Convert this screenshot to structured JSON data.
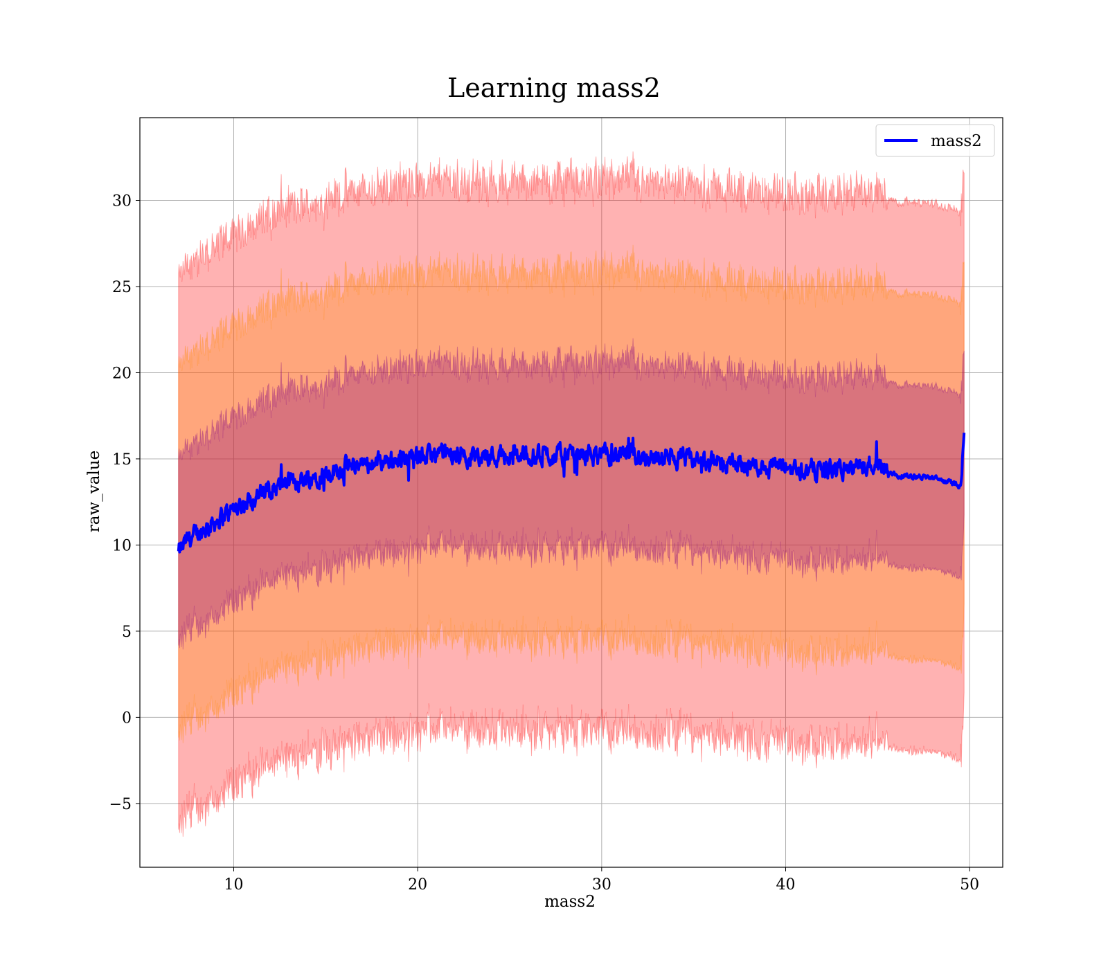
{
  "chart_data": {
    "type": "line",
    "title": "Learning mass2",
    "xlabel": "mass2",
    "ylabel": "raw_value",
    "xlim": [
      4.9,
      51.8
    ],
    "ylim": [
      -8.7,
      34.8
    ],
    "xticks": [
      10,
      20,
      30,
      40,
      50
    ],
    "yticks": [
      -5,
      0,
      5,
      10,
      15,
      20,
      25,
      30
    ],
    "ytick_labels": [
      "−5",
      "0",
      "5",
      "10",
      "15",
      "20",
      "25",
      "30"
    ],
    "grid": true,
    "legend": {
      "position": "top-right",
      "entries": [
        "mass2"
      ]
    },
    "series": [
      {
        "name": "mass2",
        "color": "#0000ff"
      }
    ],
    "anchors": {
      "x": [
        7.0,
        7.5,
        8,
        9,
        10,
        11,
        12,
        13,
        14,
        15,
        16,
        17,
        18,
        19,
        20,
        21,
        22,
        23,
        24,
        25,
        26,
        27,
        28,
        29,
        30,
        31,
        32,
        33,
        34,
        35,
        36,
        37,
        38,
        39,
        40,
        41,
        42,
        43,
        44,
        45,
        45.5,
        46,
        47,
        48,
        49,
        49.5,
        49.7
      ],
      "mean": [
        9.5,
        10.3,
        10.6,
        11.4,
        12.1,
        12.7,
        13.2,
        13.6,
        13.9,
        14.2,
        14.5,
        14.7,
        14.9,
        15.0,
        15.1,
        15.2,
        15.2,
        15.2,
        15.2,
        15.2,
        15.2,
        15.2,
        15.2,
        15.2,
        15.2,
        15.2,
        15.2,
        15.1,
        15.0,
        14.9,
        14.8,
        14.7,
        14.6,
        14.6,
        14.5,
        14.4,
        14.4,
        14.4,
        14.5,
        14.8,
        14.6,
        14.0,
        14.0,
        13.9,
        13.6,
        13.4,
        16.2
      ]
    },
    "bands": [
      {
        "sigma": 3,
        "color": "#ff0000",
        "opacity": 0.3
      },
      {
        "sigma": 2,
        "color": "#ff8c00",
        "opacity": 0.3
      },
      {
        "sigma": 1,
        "color": "#800080",
        "opacity": 0.3
      }
    ]
  }
}
